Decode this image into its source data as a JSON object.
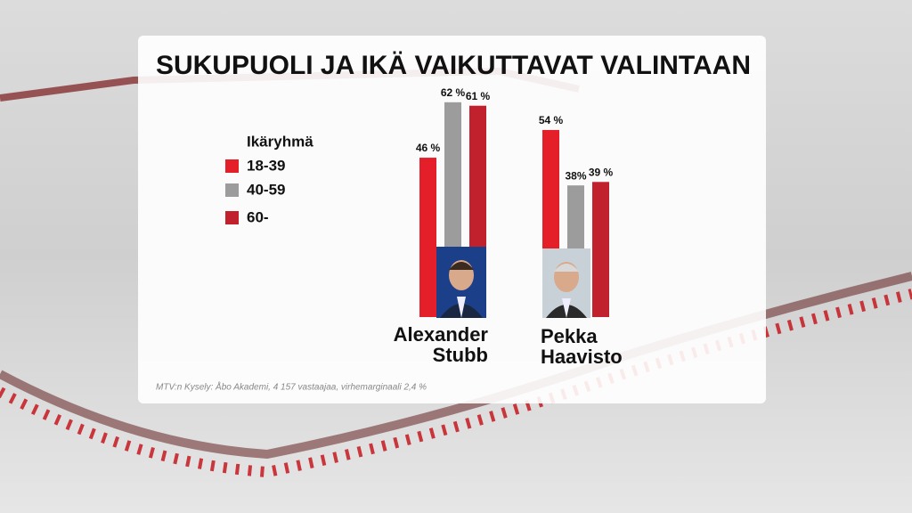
{
  "chart_data": {
    "type": "bar",
    "title": "SUKUPUOLI JA IKÄ VAIKUTTAVAT VALINTAAN",
    "legend_title": "Ikäryhmä",
    "categories": [
      "Alexander Stubb",
      "Pekka Haavisto"
    ],
    "series": [
      {
        "name": "18-39",
        "color": "#e41f2a",
        "values": [
          46,
          54
        ],
        "value_labels": [
          "46 %",
          "54 %"
        ]
      },
      {
        "name": "40-59",
        "color": "#9c9c9c",
        "values": [
          62,
          38
        ],
        "value_labels": [
          "62 %",
          "38%"
        ]
      },
      {
        "name": "60-",
        "color": "#c1202d",
        "values": [
          61,
          39
        ],
        "value_labels": [
          "61 %",
          "39 %"
        ]
      }
    ],
    "source": "MTV:n Kysely: Åbo Akademi, 4 157 vastaajaa, virhemarginaali 2,4 %"
  }
}
